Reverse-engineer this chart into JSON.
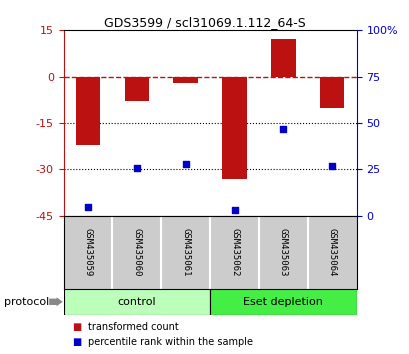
{
  "title": "GDS3599 / scl31069.1.112_64-S",
  "samples": [
    "GSM435059",
    "GSM435060",
    "GSM435061",
    "GSM435062",
    "GSM435063",
    "GSM435064"
  ],
  "transformed_count": [
    -22.0,
    -8.0,
    -2.0,
    -33.0,
    12.0,
    -10.0
  ],
  "percentile_rank": [
    5.0,
    26.0,
    28.0,
    3.0,
    47.0,
    27.0
  ],
  "left_ylim": [
    -45,
    15
  ],
  "left_yticks": [
    -45,
    -30,
    -15,
    0,
    15
  ],
  "right_ylim": [
    0,
    100
  ],
  "right_yticks": [
    0,
    25,
    50,
    75,
    100
  ],
  "right_yticklabels": [
    "0",
    "25",
    "50",
    "75",
    "100%"
  ],
  "bar_color": "#bb1111",
  "scatter_color": "#0000cc",
  "groups": [
    {
      "label": "control",
      "indices": [
        0,
        1,
        2
      ],
      "color": "#bbffbb"
    },
    {
      "label": "Eset depletion",
      "indices": [
        3,
        4,
        5
      ],
      "color": "#44ee44"
    }
  ],
  "protocol_label": "protocol",
  "legend_items": [
    {
      "label": "transformed count",
      "color": "#bb1111"
    },
    {
      "label": "percentile rank within the sample",
      "color": "#0000cc"
    }
  ],
  "dotted_lines": [
    -15,
    -30
  ],
  "background_color": "#ffffff",
  "label_box_color": "#cccccc",
  "bar_width": 0.5
}
